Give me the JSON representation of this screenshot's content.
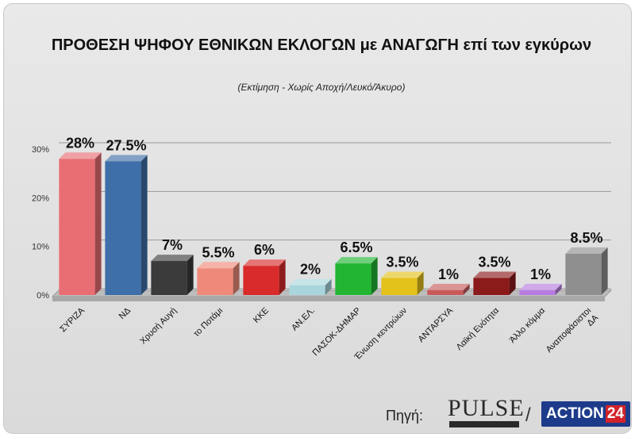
{
  "chart_data": {
    "type": "bar",
    "title": "ΠΡΟΘΕΣΗ ΨΗΦΟΥ ΕΘΝΙΚΩΝ ΕΚΛΟΓΩΝ με ΑΝΑΓΩΓΗ επί των εγκύρων",
    "subtitle": "(Εκτίμηση  -  Χωρίς Αποχή/Λευκό/Άκυρο)",
    "xlabel": "",
    "ylabel": "",
    "ylim": [
      0,
      30
    ],
    "yticks": [
      "0%",
      "10%",
      "20%",
      "30%"
    ],
    "grid": true,
    "categories": [
      "ΣΥΡΙΖΑ",
      "ΝΔ",
      "Χρυσή Αυγή",
      "το Ποτάμι",
      "ΚΚΕ",
      "ΑΝ.ΕΛ.",
      "ΠΑΣΟΚ-ΔΗΜΑΡ",
      "Ένωση κεντρώων",
      "ΑΝΤΑΡΣΥΑ",
      "Λαϊκή Ενότητα",
      "Άλλο κόμμα",
      "Αναποφάσιστοι ΔΑ"
    ],
    "values": [
      28,
      27.5,
      7,
      5.5,
      6,
      2,
      6.5,
      3.5,
      1,
      3.5,
      1,
      8.5
    ],
    "labels": [
      "28%",
      "27.5%",
      "7%",
      "5.5%",
      "6%",
      "2%",
      "6.5%",
      "3.5%",
      "1%",
      "3.5%",
      "1%",
      "8.5%"
    ],
    "colors": [
      "#e86e74",
      "#3f6fa8",
      "#3b3b3b",
      "#ef8a7a",
      "#d92b2b",
      "#a9d6dd",
      "#22b532",
      "#e3c21c",
      "#c85a5a",
      "#8b1a1a",
      "#b77be0",
      "#8f8f8f"
    ]
  },
  "footer": {
    "source_label": "Πηγή:",
    "pulse_logo": "PULSE",
    "separator": "/",
    "action_logo_word": "ACTION",
    "action_logo_num": "24"
  }
}
